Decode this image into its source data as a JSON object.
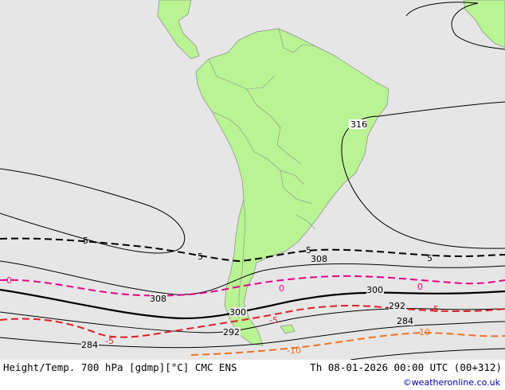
{
  "map": {
    "title": "Height/Temp. 700 hPa [gdmp][°C] CMC ENS",
    "valid_time": "Th 08-01-2026 00:00 UTC (00+312)",
    "credit": "©weatheronline.co.uk"
  },
  "colors": {
    "ocean": "#e6e6e6",
    "land": "#b9f394",
    "temp_zero": "#e8008c",
    "temp_minus5": "#e02020",
    "temp_minus10": "#f07020"
  },
  "labels": {
    "h316": "316",
    "h308": "308",
    "h300": "300",
    "h292": "292",
    "h284": "284",
    "t5": "5",
    "t0": "0",
    "tm5": "-5",
    "tm10": "-10"
  }
}
